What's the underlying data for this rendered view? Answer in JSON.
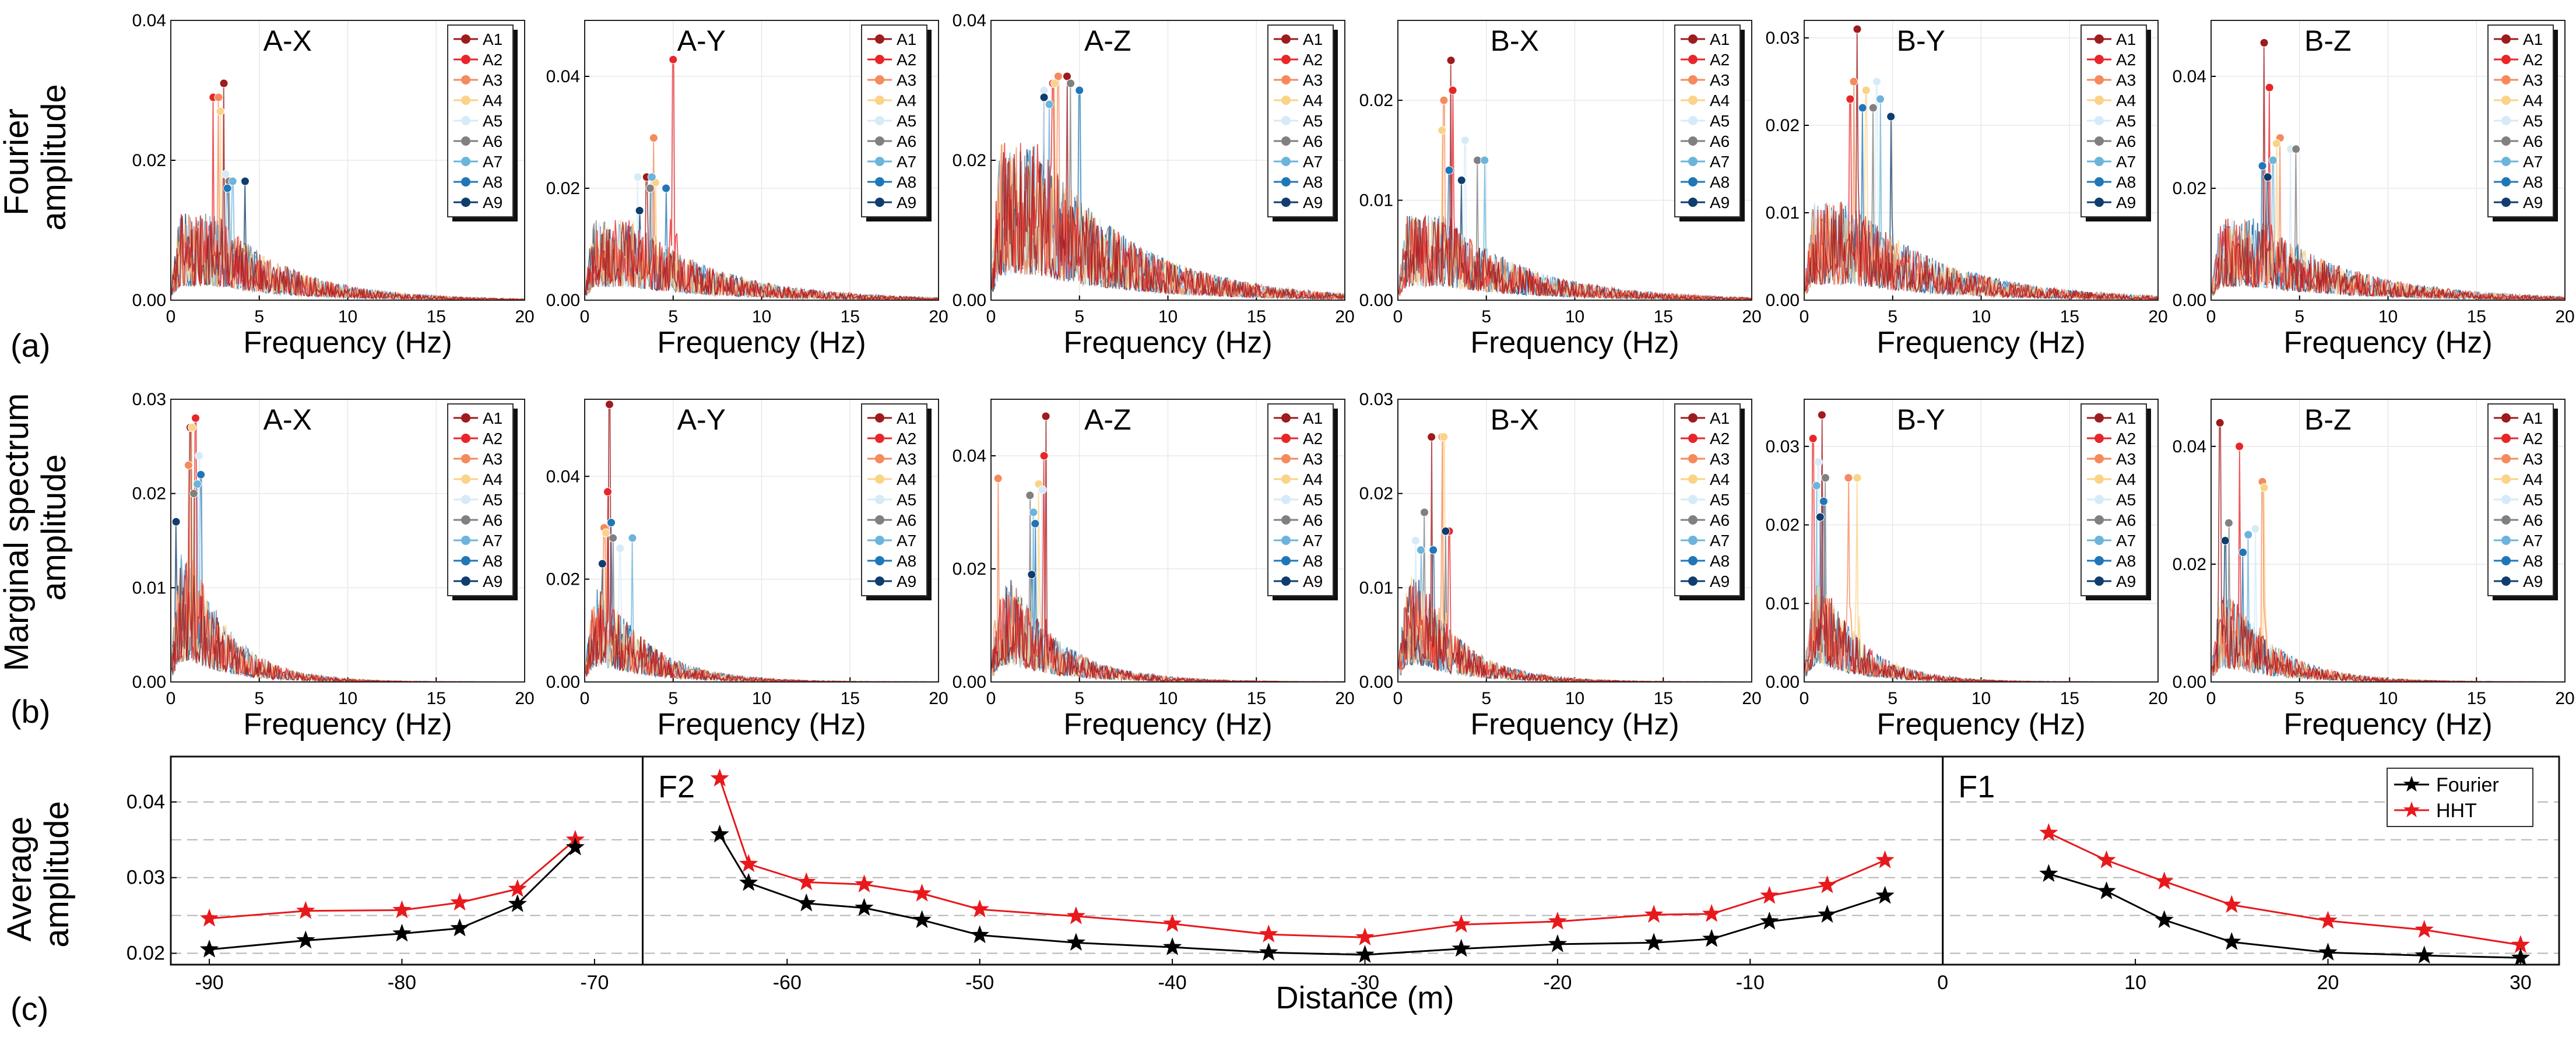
{
  "figure": {
    "row_a_label": "(a)",
    "row_b_label": "(b)",
    "row_c_label": "(c)",
    "row_a_ylabel_lines": [
      "Fourier",
      "amplitude"
    ],
    "row_b_ylabel_lines": [
      "Marginal spectrum",
      "amplitude"
    ],
    "row_c_ylabel_lines": [
      "Average",
      "amplitude"
    ]
  },
  "legend_entries": [
    "A1",
    "A2",
    "A3",
    "A4",
    "A5",
    "A6",
    "A7",
    "A8",
    "A9"
  ],
  "series_colors": [
    "#9e1b1e",
    "#e8262a",
    "#f58a5c",
    "#fbd387",
    "#d6ebf7",
    "#808080",
    "#6cb4dc",
    "#1f77b8",
    "#0f3d6e"
  ],
  "chart_data": [
    {
      "id": "a-AX",
      "type": "line",
      "row": "a",
      "panel_title": "A-X",
      "xlabel": "Frequency (Hz)",
      "xlim": [
        0,
        20
      ],
      "ylim": [
        0,
        0.04
      ],
      "xticks": [
        0,
        5,
        10,
        15,
        20
      ],
      "yticks": [
        0.0,
        0.02,
        0.04
      ],
      "ytick_labels": [
        "0.00",
        "0.02",
        "0.04"
      ],
      "decay": 4.2,
      "noise_mag": 0.011,
      "peak_marker": 2.6,
      "peaks": [
        {
          "x": 3.0,
          "y": 0.031
        },
        {
          "x": 2.4,
          "y": 0.029
        },
        {
          "x": 2.7,
          "y": 0.029
        },
        {
          "x": 2.8,
          "y": 0.027
        },
        {
          "x": 3.1,
          "y": 0.018
        },
        {
          "x": 3.3,
          "y": 0.017
        },
        {
          "x": 3.5,
          "y": 0.017
        },
        {
          "x": 3.2,
          "y": 0.016
        },
        {
          "x": 4.2,
          "y": 0.017
        }
      ]
    },
    {
      "id": "a-AY",
      "type": "line",
      "row": "a",
      "panel_title": "A-Y",
      "xlabel": "Frequency (Hz)",
      "xlim": [
        0,
        20
      ],
      "ylim": [
        0,
        0.05
      ],
      "xticks": [
        0,
        5,
        10,
        15,
        20
      ],
      "yticks": [
        0.0,
        0.02,
        0.04
      ],
      "ytick_labels": [
        "0.00",
        "0.02",
        "0.04"
      ],
      "decay": 5.0,
      "noise_mag": 0.013,
      "peak_marker": 2.6,
      "peaks": [
        {
          "x": 3.5,
          "y": 0.022
        },
        {
          "x": 5.0,
          "y": 0.043
        },
        {
          "x": 3.9,
          "y": 0.029
        },
        {
          "x": 4.0,
          "y": 0.021
        },
        {
          "x": 3.0,
          "y": 0.022
        },
        {
          "x": 3.7,
          "y": 0.02
        },
        {
          "x": 3.8,
          "y": 0.022
        },
        {
          "x": 4.6,
          "y": 0.02
        },
        {
          "x": 3.1,
          "y": 0.016
        }
      ]
    },
    {
      "id": "a-AZ",
      "type": "line",
      "row": "a",
      "panel_title": "A-Z",
      "xlabel": "Frequency (Hz)",
      "xlim": [
        0,
        20
      ],
      "ylim": [
        0,
        0.04
      ],
      "xticks": [
        0,
        5,
        10,
        15,
        20
      ],
      "yticks": [
        0.0,
        0.02,
        0.04
      ],
      "ytick_labels": [
        "0.00",
        "0.02",
        "0.04"
      ],
      "decay": 5.5,
      "noise_mag": 0.02,
      "peak_marker": 2.6,
      "peaks": [
        {
          "x": 4.3,
          "y": 0.032
        },
        {
          "x": 3.5,
          "y": 0.031
        },
        {
          "x": 3.8,
          "y": 0.032
        },
        {
          "x": 3.6,
          "y": 0.031
        },
        {
          "x": 3.0,
          "y": 0.03
        },
        {
          "x": 4.5,
          "y": 0.031
        },
        {
          "x": 3.3,
          "y": 0.028
        },
        {
          "x": 5.0,
          "y": 0.03
        },
        {
          "x": 3.0,
          "y": 0.029
        }
      ]
    },
    {
      "id": "a-BX",
      "type": "line",
      "row": "a",
      "panel_title": "B-X",
      "xlabel": "Frequency (Hz)",
      "xlim": [
        0,
        20
      ],
      "ylim": [
        0,
        0.028
      ],
      "xticks": [
        0,
        5,
        10,
        15,
        20
      ],
      "yticks": [
        0.0,
        0.01,
        0.02
      ],
      "ytick_labels": [
        "0.00",
        "0.01",
        "0.02"
      ],
      "decay": 5.0,
      "noise_mag": 0.0075,
      "peak_marker": 2.6,
      "peaks": [
        {
          "x": 3.0,
          "y": 0.024
        },
        {
          "x": 3.1,
          "y": 0.021
        },
        {
          "x": 2.6,
          "y": 0.02
        },
        {
          "x": 2.5,
          "y": 0.017
        },
        {
          "x": 3.8,
          "y": 0.016
        },
        {
          "x": 4.5,
          "y": 0.014
        },
        {
          "x": 4.9,
          "y": 0.014
        },
        {
          "x": 2.9,
          "y": 0.013
        },
        {
          "x": 3.6,
          "y": 0.012
        }
      ]
    },
    {
      "id": "a-BY",
      "type": "line",
      "row": "a",
      "panel_title": "B-Y",
      "xlabel": "Frequency (Hz)",
      "xlim": [
        0,
        20
      ],
      "ylim": [
        0,
        0.032
      ],
      "xticks": [
        0,
        5,
        10,
        15,
        20
      ],
      "yticks": [
        0.0,
        0.01,
        0.02,
        0.03
      ],
      "ytick_labels": [
        "0.00",
        "0.01",
        "0.02",
        "0.03"
      ],
      "decay": 5.5,
      "noise_mag": 0.01,
      "peak_marker": 2.6,
      "peaks": [
        {
          "x": 3.0,
          "y": 0.031
        },
        {
          "x": 2.6,
          "y": 0.023
        },
        {
          "x": 2.8,
          "y": 0.025
        },
        {
          "x": 3.5,
          "y": 0.024
        },
        {
          "x": 4.1,
          "y": 0.025
        },
        {
          "x": 3.9,
          "y": 0.022
        },
        {
          "x": 4.3,
          "y": 0.023
        },
        {
          "x": 3.3,
          "y": 0.022
        },
        {
          "x": 4.9,
          "y": 0.021
        }
      ]
    },
    {
      "id": "a-BZ",
      "type": "line",
      "row": "a",
      "panel_title": "B-Z",
      "xlabel": "Frequency (Hz)",
      "xlim": [
        0,
        20
      ],
      "ylim": [
        0,
        0.05
      ],
      "xticks": [
        0,
        5,
        10,
        15,
        20
      ],
      "yticks": [
        0.0,
        0.02,
        0.04
      ],
      "ytick_labels": [
        "0.00",
        "0.02",
        "0.04"
      ],
      "decay": 5.5,
      "noise_mag": 0.013,
      "peak_marker": 2.6,
      "peaks": [
        {
          "x": 3.0,
          "y": 0.046
        },
        {
          "x": 3.3,
          "y": 0.038
        },
        {
          "x": 3.9,
          "y": 0.029
        },
        {
          "x": 3.7,
          "y": 0.028
        },
        {
          "x": 4.5,
          "y": 0.027
        },
        {
          "x": 4.8,
          "y": 0.027
        },
        {
          "x": 3.5,
          "y": 0.025
        },
        {
          "x": 2.9,
          "y": 0.024
        },
        {
          "x": 3.2,
          "y": 0.022
        }
      ]
    },
    {
      "id": "b-AX",
      "type": "line",
      "row": "b",
      "panel_title": "A-X",
      "xlabel": "Frequency (Hz)",
      "xlim": [
        0,
        20
      ],
      "ylim": [
        0,
        0.03
      ],
      "xticks": [
        0,
        5,
        10,
        15,
        20
      ],
      "yticks": [
        0.0,
        0.01,
        0.02,
        0.03
      ],
      "ytick_labels": [
        "0.00",
        "0.01",
        "0.02",
        "0.03"
      ],
      "decay": 2.4,
      "noise_mag": 0.012,
      "peak_marker": 1.2,
      "peaks": [
        {
          "x": 1.1,
          "y": 0.027
        },
        {
          "x": 1.4,
          "y": 0.028
        },
        {
          "x": 1.0,
          "y": 0.023
        },
        {
          "x": 1.2,
          "y": 0.027
        },
        {
          "x": 1.6,
          "y": 0.024
        },
        {
          "x": 1.3,
          "y": 0.02
        },
        {
          "x": 1.5,
          "y": 0.021
        },
        {
          "x": 1.7,
          "y": 0.022
        },
        {
          "x": 0.3,
          "y": 0.017
        }
      ]
    },
    {
      "id": "b-AY",
      "type": "line",
      "row": "b",
      "panel_title": "A-Y",
      "xlabel": "Frequency (Hz)",
      "xlim": [
        0,
        20
      ],
      "ylim": [
        0,
        0.055
      ],
      "xticks": [
        0,
        5,
        10,
        15,
        20
      ],
      "yticks": [
        0.0,
        0.02,
        0.04
      ],
      "ytick_labels": [
        "0.00",
        "0.02",
        "0.04"
      ],
      "decay": 2.8,
      "noise_mag": 0.016,
      "peak_marker": 1.2,
      "peaks": [
        {
          "x": 1.4,
          "y": 0.054
        },
        {
          "x": 1.3,
          "y": 0.037
        },
        {
          "x": 1.1,
          "y": 0.03
        },
        {
          "x": 1.2,
          "y": 0.029
        },
        {
          "x": 2.0,
          "y": 0.026
        },
        {
          "x": 1.6,
          "y": 0.028
        },
        {
          "x": 2.7,
          "y": 0.028
        },
        {
          "x": 1.5,
          "y": 0.031
        },
        {
          "x": 1.0,
          "y": 0.023
        }
      ]
    },
    {
      "id": "b-AZ",
      "type": "line",
      "row": "b",
      "panel_title": "A-Z",
      "xlabel": "Frequency (Hz)",
      "xlim": [
        0,
        20
      ],
      "ylim": [
        0,
        0.05
      ],
      "xticks": [
        0,
        5,
        10,
        15,
        20
      ],
      "yticks": [
        0.0,
        0.02,
        0.04
      ],
      "ytick_labels": [
        "0.00",
        "0.02",
        "0.04"
      ],
      "decay": 3.0,
      "noise_mag": 0.016,
      "peak_marker": 1.2,
      "peaks": [
        {
          "x": 3.1,
          "y": 0.047
        },
        {
          "x": 3.0,
          "y": 0.04
        },
        {
          "x": 0.4,
          "y": 0.036
        },
        {
          "x": 2.7,
          "y": 0.035
        },
        {
          "x": 2.9,
          "y": 0.034
        },
        {
          "x": 2.2,
          "y": 0.033
        },
        {
          "x": 2.4,
          "y": 0.03
        },
        {
          "x": 2.5,
          "y": 0.028
        },
        {
          "x": 2.3,
          "y": 0.019
        }
      ]
    },
    {
      "id": "b-BX",
      "type": "line",
      "row": "b",
      "panel_title": "B-X",
      "xlabel": "Frequency (Hz)",
      "xlim": [
        0,
        20
      ],
      "ylim": [
        0,
        0.03
      ],
      "xticks": [
        0,
        5,
        10,
        15,
        20
      ],
      "yticks": [
        0.0,
        0.01,
        0.02,
        0.03
      ],
      "ytick_labels": [
        "0.00",
        "0.01",
        "0.02",
        "0.03"
      ],
      "decay": 2.6,
      "noise_mag": 0.01,
      "peak_marker": 1.2,
      "peaks": [
        {
          "x": 1.9,
          "y": 0.026
        },
        {
          "x": 2.9,
          "y": 0.016
        },
        {
          "x": 2.5,
          "y": 0.026
        },
        {
          "x": 2.6,
          "y": 0.026
        },
        {
          "x": 1.0,
          "y": 0.015
        },
        {
          "x": 1.5,
          "y": 0.018
        },
        {
          "x": 1.3,
          "y": 0.014
        },
        {
          "x": 2.0,
          "y": 0.014
        },
        {
          "x": 2.7,
          "y": 0.016
        }
      ]
    },
    {
      "id": "b-BY",
      "type": "line",
      "row": "b",
      "panel_title": "B-Y",
      "xlabel": "Frequency (Hz)",
      "xlim": [
        0,
        20
      ],
      "ylim": [
        0,
        0.036
      ],
      "xticks": [
        0,
        5,
        10,
        15,
        20
      ],
      "yticks": [
        0.0,
        0.01,
        0.02,
        0.03
      ],
      "ytick_labels": [
        "0.00",
        "0.01",
        "0.02",
        "0.03"
      ],
      "decay": 2.4,
      "noise_mag": 0.011,
      "peak_marker": 1.2,
      "peaks": [
        {
          "x": 1.0,
          "y": 0.034
        },
        {
          "x": 0.5,
          "y": 0.031
        },
        {
          "x": 2.5,
          "y": 0.026
        },
        {
          "x": 3.0,
          "y": 0.026
        },
        {
          "x": 0.8,
          "y": 0.028
        },
        {
          "x": 1.2,
          "y": 0.026
        },
        {
          "x": 0.7,
          "y": 0.025
        },
        {
          "x": 1.1,
          "y": 0.023
        },
        {
          "x": 0.9,
          "y": 0.021
        }
      ]
    },
    {
      "id": "b-BZ",
      "type": "line",
      "row": "b",
      "panel_title": "B-Z",
      "xlabel": "Frequency (Hz)",
      "xlim": [
        0,
        20
      ],
      "ylim": [
        0,
        0.048
      ],
      "xticks": [
        0,
        5,
        10,
        15,
        20
      ],
      "yticks": [
        0.0,
        0.02,
        0.04
      ],
      "ytick_labels": [
        "0.00",
        "0.02",
        "0.04"
      ],
      "decay": 2.8,
      "noise_mag": 0.013,
      "peak_marker": 1.2,
      "peaks": [
        {
          "x": 0.5,
          "y": 0.044
        },
        {
          "x": 1.6,
          "y": 0.04
        },
        {
          "x": 2.9,
          "y": 0.034
        },
        {
          "x": 3.0,
          "y": 0.033
        },
        {
          "x": 2.5,
          "y": 0.026
        },
        {
          "x": 1.0,
          "y": 0.027
        },
        {
          "x": 2.1,
          "y": 0.025
        },
        {
          "x": 1.8,
          "y": 0.022
        },
        {
          "x": 0.8,
          "y": 0.024
        }
      ]
    },
    {
      "id": "c",
      "type": "line",
      "xlabel": "Distance (m)",
      "ylabel": "Average amplitude",
      "xlim": [
        -92,
        32
      ],
      "ylim": [
        0.0185,
        0.046
      ],
      "xticks": [
        -90,
        -80,
        -70,
        -60,
        -50,
        -40,
        -30,
        -20,
        -10,
        0,
        10,
        20,
        30
      ],
      "yticks": [
        0.02,
        0.03,
        0.04
      ],
      "ytick_labels": [
        "0.02",
        "0.03",
        "0.04"
      ],
      "dashed_grid_y": [
        0.02,
        0.025,
        0.03,
        0.035,
        0.04
      ],
      "divider_x": [
        -67.5,
        0
      ],
      "fault_labels": [
        {
          "text": "F2",
          "x": -67
        },
        {
          "text": "F1",
          "x": 0.5
        }
      ],
      "legend": [
        "Fourier",
        "HHT"
      ],
      "series": [
        {
          "name": "Fourier",
          "color": "#000000",
          "segments": [
            {
              "x": [
                -90,
                -85,
                -80,
                -77,
                -74,
                -71
              ],
              "y": [
                0.0205,
                0.0217,
                0.0226,
                0.0233,
                0.0265,
                0.034
              ]
            },
            {
              "x": [
                -63.5,
                -62,
                -59,
                -56,
                -53,
                -50,
                -45,
                -40,
                -35,
                -30,
                -25,
                -20,
                -15,
                -12,
                -9,
                -6,
                -3
              ],
              "y": [
                0.0357,
                0.0293,
                0.0266,
                0.026,
                0.0244,
                0.0224,
                0.0214,
                0.0208,
                0.0201,
                0.0198,
                0.0206,
                0.0212,
                0.0214,
                0.0219,
                0.0242,
                0.0251,
                0.0276
              ]
            },
            {
              "x": [
                5.5,
                8.5,
                11.5,
                15,
                20,
                25,
                30
              ],
              "y": [
                0.0305,
                0.0282,
                0.0244,
                0.0215,
                0.0201,
                0.0197,
                0.0194
              ]
            }
          ]
        },
        {
          "name": "HHT",
          "color": "#e8191c",
          "segments": [
            {
              "x": [
                -90,
                -85,
                -80,
                -77,
                -74,
                -71
              ],
              "y": [
                0.0246,
                0.0256,
                0.0257,
                0.0267,
                0.0285,
                0.035
              ]
            },
            {
              "x": [
                -63.5,
                -62,
                -59,
                -56,
                -53,
                -50,
                -45,
                -40,
                -35,
                -30,
                -25,
                -20,
                -15,
                -12,
                -9,
                -6,
                -3
              ],
              "y": [
                0.0431,
                0.0318,
                0.0294,
                0.0291,
                0.0279,
                0.0258,
                0.0249,
                0.0239,
                0.0225,
                0.0221,
                0.0238,
                0.0242,
                0.0251,
                0.0252,
                0.0276,
                0.029,
                0.0323
              ]
            },
            {
              "x": [
                5.5,
                8.5,
                11.5,
                15,
                20,
                25,
                30
              ],
              "y": [
                0.0359,
                0.0323,
                0.0295,
                0.0264,
                0.0243,
                0.0231,
                0.0211
              ]
            }
          ]
        }
      ]
    }
  ]
}
